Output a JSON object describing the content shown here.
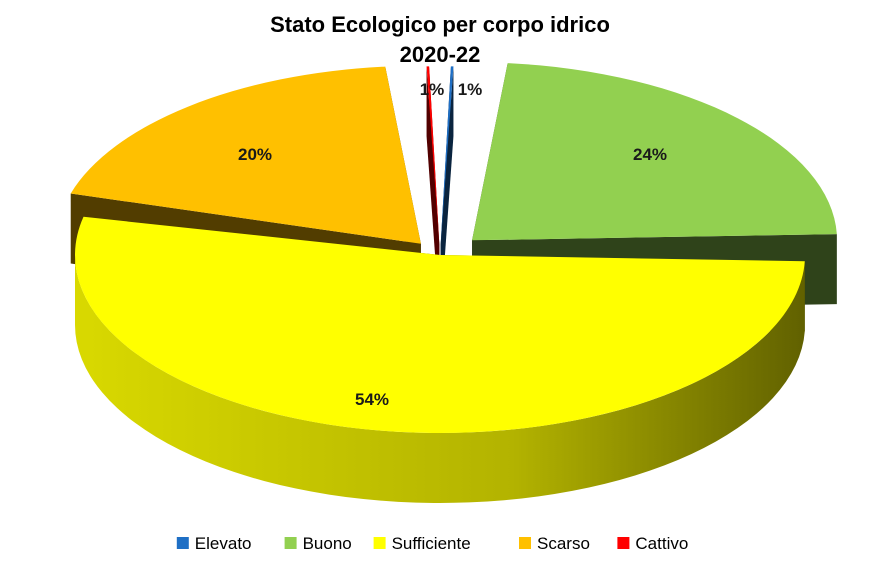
{
  "chart_data": {
    "type": "pie",
    "title": "Stato Ecologico per corpo idrico",
    "subtitle": "2020-22",
    "categories": [
      "Elevato",
      "Buono",
      "Sufficiente",
      "Scarso",
      "Cattivo"
    ],
    "values": [
      1,
      24,
      54,
      20,
      1
    ],
    "data_labels": [
      "1%",
      "24%",
      "54%",
      "20%",
      "1%"
    ],
    "colors": [
      "#1f6fc5",
      "#92d050",
      "#ffff00",
      "#ffc000",
      "#ff0000"
    ],
    "legend_position": "bottom",
    "style": "3d-exploded"
  }
}
